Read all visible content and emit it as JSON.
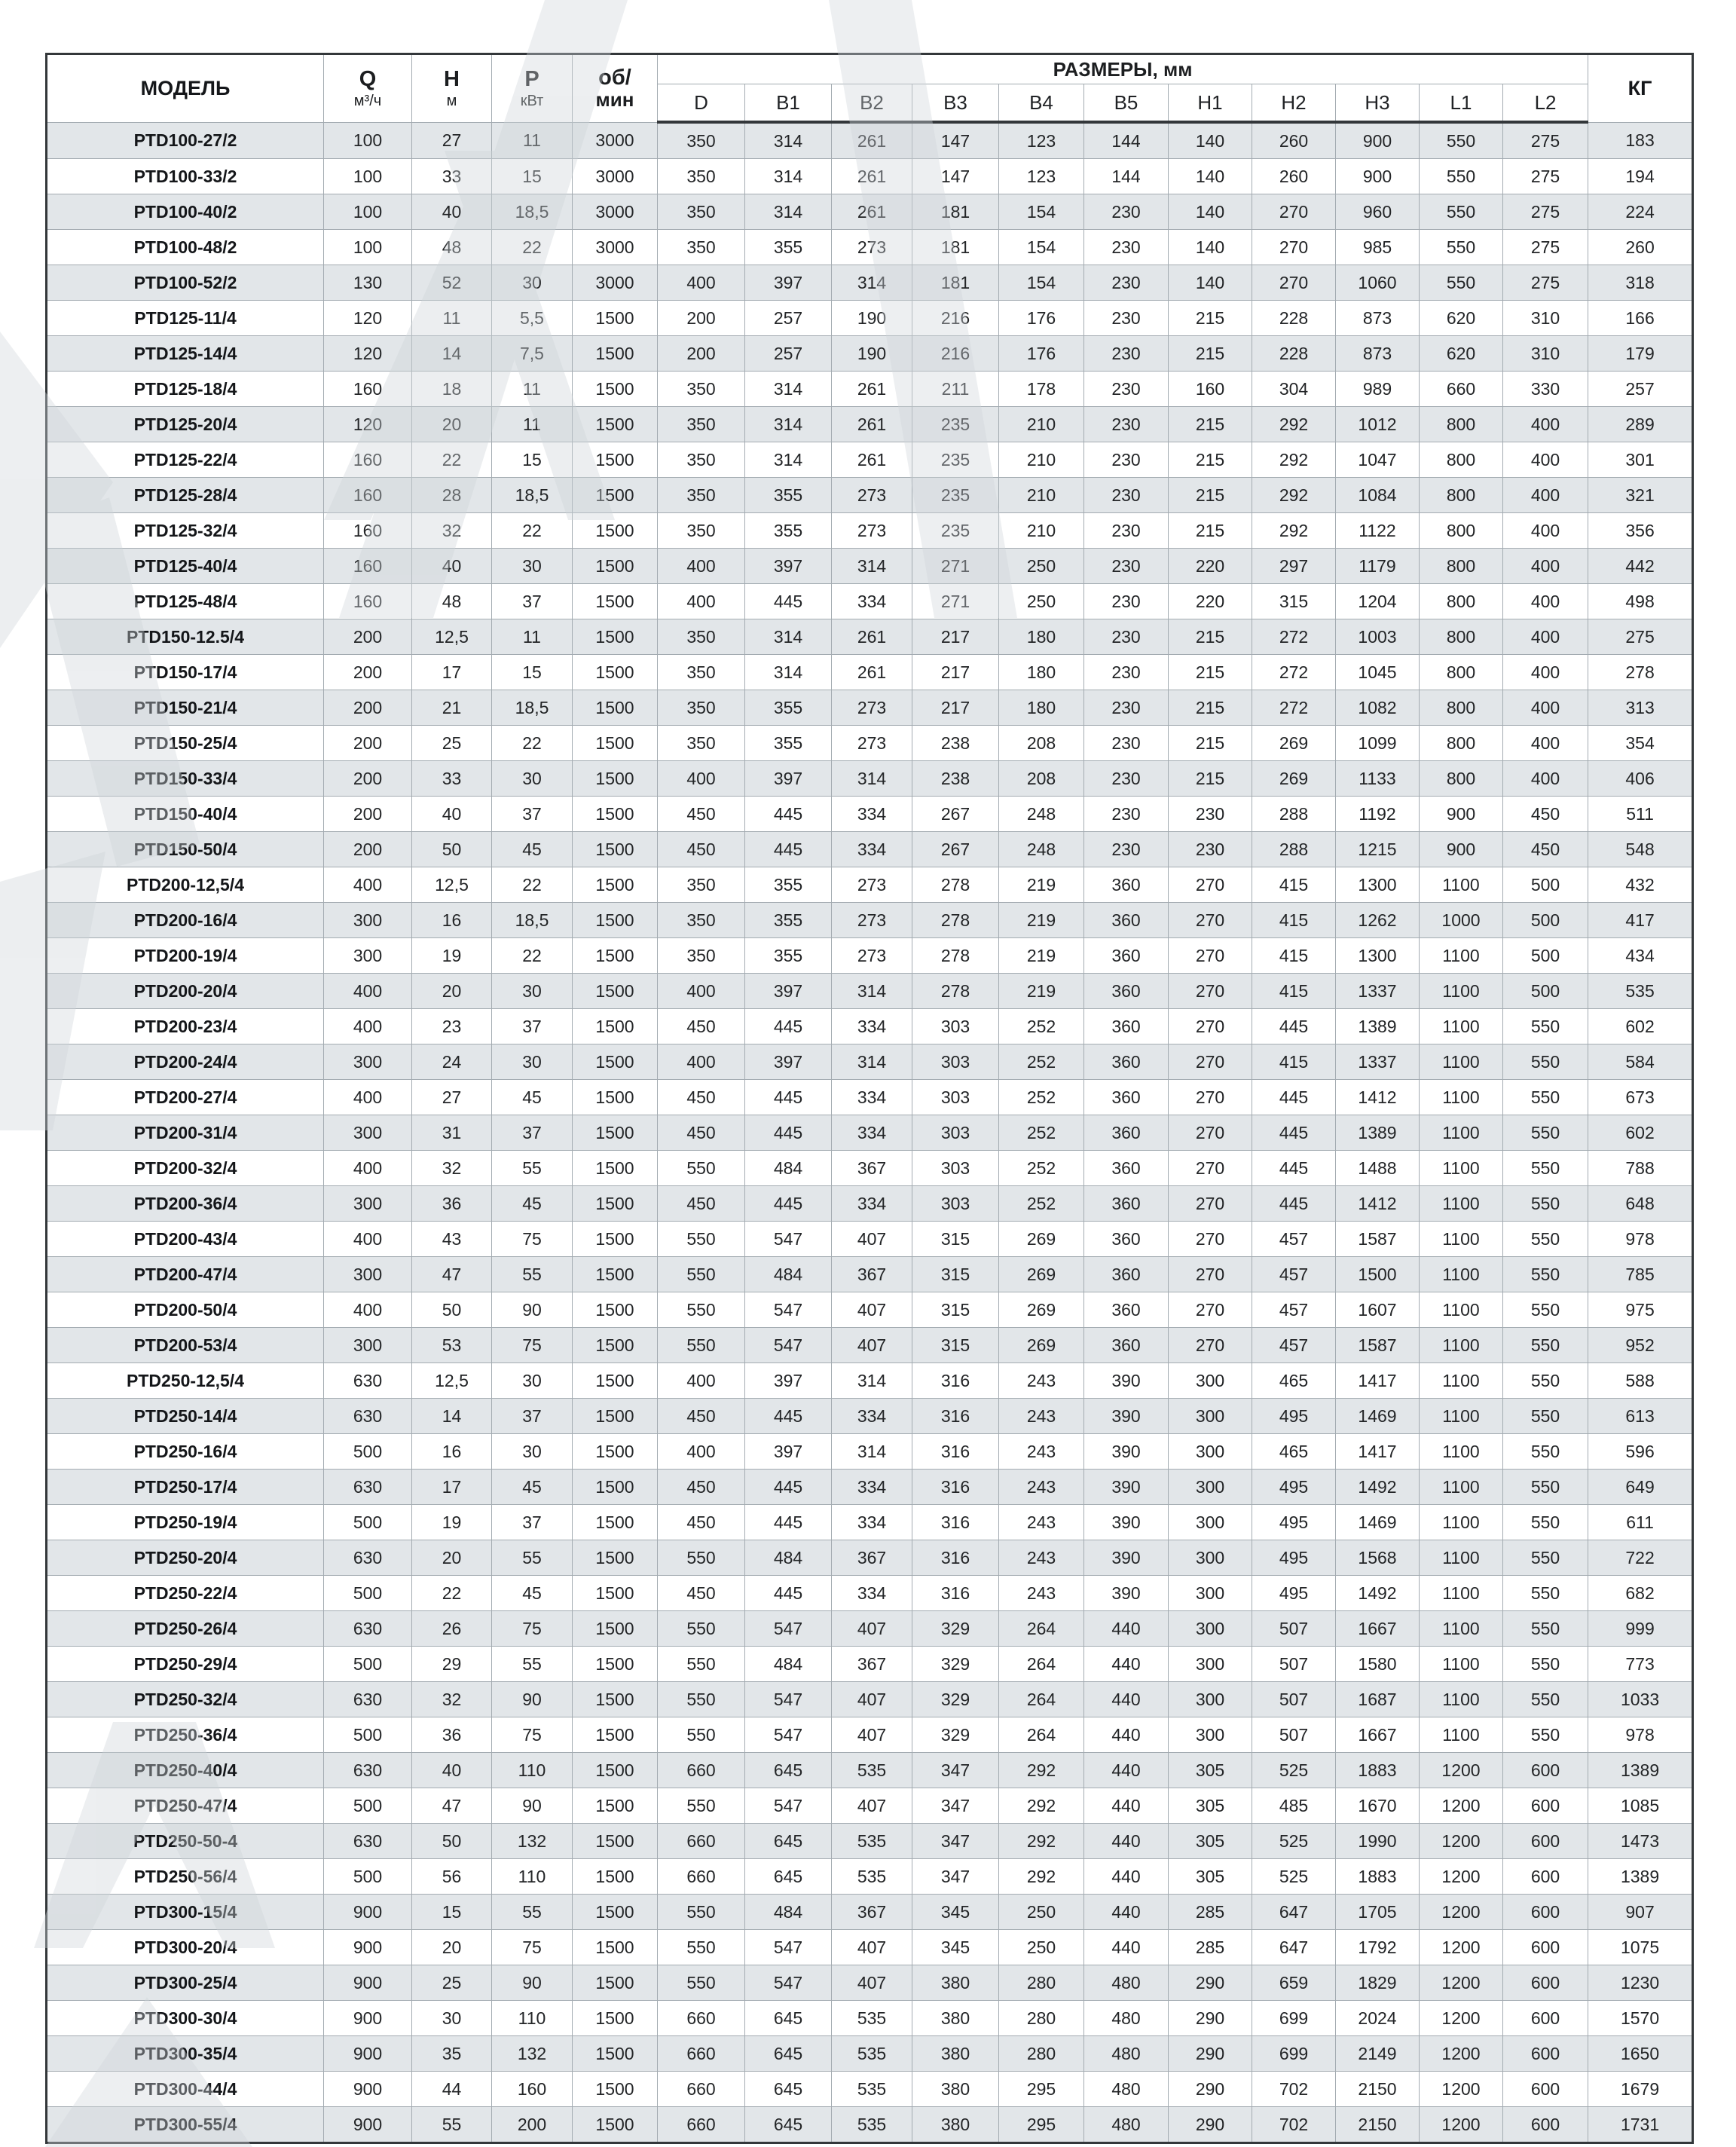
{
  "header": {
    "model": "МОДЕЛЬ",
    "q_label": "Q",
    "q_unit": "м³/ч",
    "h_label": "Н",
    "h_unit": "м",
    "p_label": "Р",
    "p_unit": "кВт",
    "rpm_line1": "об/",
    "rpm_line2": "мин",
    "dims_label": "РАЗМЕРЫ, мм",
    "dim_cols": [
      "D",
      "B1",
      "B2",
      "B3",
      "B4",
      "B5",
      "H1",
      "H2",
      "H3",
      "L1",
      "L2"
    ],
    "kg": "КГ"
  },
  "colors": {
    "row_stripe": "#e2e6e9",
    "grid_line": "#a3abb1",
    "frame": "#33373a",
    "watermark": "#cfd5d9"
  },
  "rows": [
    [
      "PTD100-27/2",
      "100",
      "27",
      "11",
      "3000",
      "350",
      "314",
      "261",
      "147",
      "123",
      "144",
      "140",
      "260",
      "900",
      "550",
      "275",
      "183"
    ],
    [
      "PTD100-33/2",
      "100",
      "33",
      "15",
      "3000",
      "350",
      "314",
      "261",
      "147",
      "123",
      "144",
      "140",
      "260",
      "900",
      "550",
      "275",
      "194"
    ],
    [
      "PTD100-40/2",
      "100",
      "40",
      "18,5",
      "3000",
      "350",
      "314",
      "261",
      "181",
      "154",
      "230",
      "140",
      "270",
      "960",
      "550",
      "275",
      "224"
    ],
    [
      "PTD100-48/2",
      "100",
      "48",
      "22",
      "3000",
      "350",
      "355",
      "273",
      "181",
      "154",
      "230",
      "140",
      "270",
      "985",
      "550",
      "275",
      "260"
    ],
    [
      "PTD100-52/2",
      "130",
      "52",
      "30",
      "3000",
      "400",
      "397",
      "314",
      "181",
      "154",
      "230",
      "140",
      "270",
      "1060",
      "550",
      "275",
      "318"
    ],
    [
      "PTD125-11/4",
      "120",
      "11",
      "5,5",
      "1500",
      "200",
      "257",
      "190",
      "216",
      "176",
      "230",
      "215",
      "228",
      "873",
      "620",
      "310",
      "166"
    ],
    [
      "PTD125-14/4",
      "120",
      "14",
      "7,5",
      "1500",
      "200",
      "257",
      "190",
      "216",
      "176",
      "230",
      "215",
      "228",
      "873",
      "620",
      "310",
      "179"
    ],
    [
      "PTD125-18/4",
      "160",
      "18",
      "11",
      "1500",
      "350",
      "314",
      "261",
      "211",
      "178",
      "230",
      "160",
      "304",
      "989",
      "660",
      "330",
      "257"
    ],
    [
      "PTD125-20/4",
      "120",
      "20",
      "11",
      "1500",
      "350",
      "314",
      "261",
      "235",
      "210",
      "230",
      "215",
      "292",
      "1012",
      "800",
      "400",
      "289"
    ],
    [
      "PTD125-22/4",
      "160",
      "22",
      "15",
      "1500",
      "350",
      "314",
      "261",
      "235",
      "210",
      "230",
      "215",
      "292",
      "1047",
      "800",
      "400",
      "301"
    ],
    [
      "PTD125-28/4",
      "160",
      "28",
      "18,5",
      "1500",
      "350",
      "355",
      "273",
      "235",
      "210",
      "230",
      "215",
      "292",
      "1084",
      "800",
      "400",
      "321"
    ],
    [
      "PTD125-32/4",
      "160",
      "32",
      "22",
      "1500",
      "350",
      "355",
      "273",
      "235",
      "210",
      "230",
      "215",
      "292",
      "1122",
      "800",
      "400",
      "356"
    ],
    [
      "PTD125-40/4",
      "160",
      "40",
      "30",
      "1500",
      "400",
      "397",
      "314",
      "271",
      "250",
      "230",
      "220",
      "297",
      "1179",
      "800",
      "400",
      "442"
    ],
    [
      "PTD125-48/4",
      "160",
      "48",
      "37",
      "1500",
      "400",
      "445",
      "334",
      "271",
      "250",
      "230",
      "220",
      "315",
      "1204",
      "800",
      "400",
      "498"
    ],
    [
      "PTD150-12.5/4",
      "200",
      "12,5",
      "11",
      "1500",
      "350",
      "314",
      "261",
      "217",
      "180",
      "230",
      "215",
      "272",
      "1003",
      "800",
      "400",
      "275"
    ],
    [
      "PTD150-17/4",
      "200",
      "17",
      "15",
      "1500",
      "350",
      "314",
      "261",
      "217",
      "180",
      "230",
      "215",
      "272",
      "1045",
      "800",
      "400",
      "278"
    ],
    [
      "PTD150-21/4",
      "200",
      "21",
      "18,5",
      "1500",
      "350",
      "355",
      "273",
      "217",
      "180",
      "230",
      "215",
      "272",
      "1082",
      "800",
      "400",
      "313"
    ],
    [
      "PTD150-25/4",
      "200",
      "25",
      "22",
      "1500",
      "350",
      "355",
      "273",
      "238",
      "208",
      "230",
      "215",
      "269",
      "1099",
      "800",
      "400",
      "354"
    ],
    [
      "PTD150-33/4",
      "200",
      "33",
      "30",
      "1500",
      "400",
      "397",
      "314",
      "238",
      "208",
      "230",
      "215",
      "269",
      "1133",
      "800",
      "400",
      "406"
    ],
    [
      "PTD150-40/4",
      "200",
      "40",
      "37",
      "1500",
      "450",
      "445",
      "334",
      "267",
      "248",
      "230",
      "230",
      "288",
      "1192",
      "900",
      "450",
      "511"
    ],
    [
      "PTD150-50/4",
      "200",
      "50",
      "45",
      "1500",
      "450",
      "445",
      "334",
      "267",
      "248",
      "230",
      "230",
      "288",
      "1215",
      "900",
      "450",
      "548"
    ],
    [
      "PTD200-12,5/4",
      "400",
      "12,5",
      "22",
      "1500",
      "350",
      "355",
      "273",
      "278",
      "219",
      "360",
      "270",
      "415",
      "1300",
      "1100",
      "500",
      "432"
    ],
    [
      "PTD200-16/4",
      "300",
      "16",
      "18,5",
      "1500",
      "350",
      "355",
      "273",
      "278",
      "219",
      "360",
      "270",
      "415",
      "1262",
      "1000",
      "500",
      "417"
    ],
    [
      "PTD200-19/4",
      "300",
      "19",
      "22",
      "1500",
      "350",
      "355",
      "273",
      "278",
      "219",
      "360",
      "270",
      "415",
      "1300",
      "1100",
      "500",
      "434"
    ],
    [
      "PTD200-20/4",
      "400",
      "20",
      "30",
      "1500",
      "400",
      "397",
      "314",
      "278",
      "219",
      "360",
      "270",
      "415",
      "1337",
      "1100",
      "500",
      "535"
    ],
    [
      "PTD200-23/4",
      "400",
      "23",
      "37",
      "1500",
      "450",
      "445",
      "334",
      "303",
      "252",
      "360",
      "270",
      "445",
      "1389",
      "1100",
      "550",
      "602"
    ],
    [
      "PTD200-24/4",
      "300",
      "24",
      "30",
      "1500",
      "400",
      "397",
      "314",
      "303",
      "252",
      "360",
      "270",
      "415",
      "1337",
      "1100",
      "550",
      "584"
    ],
    [
      "PTD200-27/4",
      "400",
      "27",
      "45",
      "1500",
      "450",
      "445",
      "334",
      "303",
      "252",
      "360",
      "270",
      "445",
      "1412",
      "1100",
      "550",
      "673"
    ],
    [
      "PTD200-31/4",
      "300",
      "31",
      "37",
      "1500",
      "450",
      "445",
      "334",
      "303",
      "252",
      "360",
      "270",
      "445",
      "1389",
      "1100",
      "550",
      "602"
    ],
    [
      "PTD200-32/4",
      "400",
      "32",
      "55",
      "1500",
      "550",
      "484",
      "367",
      "303",
      "252",
      "360",
      "270",
      "445",
      "1488",
      "1100",
      "550",
      "788"
    ],
    [
      "PTD200-36/4",
      "300",
      "36",
      "45",
      "1500",
      "450",
      "445",
      "334",
      "303",
      "252",
      "360",
      "270",
      "445",
      "1412",
      "1100",
      "550",
      "648"
    ],
    [
      "PTD200-43/4",
      "400",
      "43",
      "75",
      "1500",
      "550",
      "547",
      "407",
      "315",
      "269",
      "360",
      "270",
      "457",
      "1587",
      "1100",
      "550",
      "978"
    ],
    [
      "PTD200-47/4",
      "300",
      "47",
      "55",
      "1500",
      "550",
      "484",
      "367",
      "315",
      "269",
      "360",
      "270",
      "457",
      "1500",
      "1100",
      "550",
      "785"
    ],
    [
      "PTD200-50/4",
      "400",
      "50",
      "90",
      "1500",
      "550",
      "547",
      "407",
      "315",
      "269",
      "360",
      "270",
      "457",
      "1607",
      "1100",
      "550",
      "975"
    ],
    [
      "PTD200-53/4",
      "300",
      "53",
      "75",
      "1500",
      "550",
      "547",
      "407",
      "315",
      "269",
      "360",
      "270",
      "457",
      "1587",
      "1100",
      "550",
      "952"
    ],
    [
      "PTD250-12,5/4",
      "630",
      "12,5",
      "30",
      "1500",
      "400",
      "397",
      "314",
      "316",
      "243",
      "390",
      "300",
      "465",
      "1417",
      "1100",
      "550",
      "588"
    ],
    [
      "PTD250-14/4",
      "630",
      "14",
      "37",
      "1500",
      "450",
      "445",
      "334",
      "316",
      "243",
      "390",
      "300",
      "495",
      "1469",
      "1100",
      "550",
      "613"
    ],
    [
      "PTD250-16/4",
      "500",
      "16",
      "30",
      "1500",
      "400",
      "397",
      "314",
      "316",
      "243",
      "390",
      "300",
      "465",
      "1417",
      "1100",
      "550",
      "596"
    ],
    [
      "PTD250-17/4",
      "630",
      "17",
      "45",
      "1500",
      "450",
      "445",
      "334",
      "316",
      "243",
      "390",
      "300",
      "495",
      "1492",
      "1100",
      "550",
      "649"
    ],
    [
      "PTD250-19/4",
      "500",
      "19",
      "37",
      "1500",
      "450",
      "445",
      "334",
      "316",
      "243",
      "390",
      "300",
      "495",
      "1469",
      "1100",
      "550",
      "611"
    ],
    [
      "PTD250-20/4",
      "630",
      "20",
      "55",
      "1500",
      "550",
      "484",
      "367",
      "316",
      "243",
      "390",
      "300",
      "495",
      "1568",
      "1100",
      "550",
      "722"
    ],
    [
      "PTD250-22/4",
      "500",
      "22",
      "45",
      "1500",
      "450",
      "445",
      "334",
      "316",
      "243",
      "390",
      "300",
      "495",
      "1492",
      "1100",
      "550",
      "682"
    ],
    [
      "PTD250-26/4",
      "630",
      "26",
      "75",
      "1500",
      "550",
      "547",
      "407",
      "329",
      "264",
      "440",
      "300",
      "507",
      "1667",
      "1100",
      "550",
      "999"
    ],
    [
      "PTD250-29/4",
      "500",
      "29",
      "55",
      "1500",
      "550",
      "484",
      "367",
      "329",
      "264",
      "440",
      "300",
      "507",
      "1580",
      "1100",
      "550",
      "773"
    ],
    [
      "PTD250-32/4",
      "630",
      "32",
      "90",
      "1500",
      "550",
      "547",
      "407",
      "329",
      "264",
      "440",
      "300",
      "507",
      "1687",
      "1100",
      "550",
      "1033"
    ],
    [
      "PTD250-36/4",
      "500",
      "36",
      "75",
      "1500",
      "550",
      "547",
      "407",
      "329",
      "264",
      "440",
      "300",
      "507",
      "1667",
      "1100",
      "550",
      "978"
    ],
    [
      "PTD250-40/4",
      "630",
      "40",
      "110",
      "1500",
      "660",
      "645",
      "535",
      "347",
      "292",
      "440",
      "305",
      "525",
      "1883",
      "1200",
      "600",
      "1389"
    ],
    [
      "PTD250-47/4",
      "500",
      "47",
      "90",
      "1500",
      "550",
      "547",
      "407",
      "347",
      "292",
      "440",
      "305",
      "485",
      "1670",
      "1200",
      "600",
      "1085"
    ],
    [
      "PTD250-50-4",
      "630",
      "50",
      "132",
      "1500",
      "660",
      "645",
      "535",
      "347",
      "292",
      "440",
      "305",
      "525",
      "1990",
      "1200",
      "600",
      "1473"
    ],
    [
      "PTD250-56/4",
      "500",
      "56",
      "110",
      "1500",
      "660",
      "645",
      "535",
      "347",
      "292",
      "440",
      "305",
      "525",
      "1883",
      "1200",
      "600",
      "1389"
    ],
    [
      "PTD300-15/4",
      "900",
      "15",
      "55",
      "1500",
      "550",
      "484",
      "367",
      "345",
      "250",
      "440",
      "285",
      "647",
      "1705",
      "1200",
      "600",
      "907"
    ],
    [
      "PTD300-20/4",
      "900",
      "20",
      "75",
      "1500",
      "550",
      "547",
      "407",
      "345",
      "250",
      "440",
      "285",
      "647",
      "1792",
      "1200",
      "600",
      "1075"
    ],
    [
      "PTD300-25/4",
      "900",
      "25",
      "90",
      "1500",
      "550",
      "547",
      "407",
      "380",
      "280",
      "480",
      "290",
      "659",
      "1829",
      "1200",
      "600",
      "1230"
    ],
    [
      "PTD300-30/4",
      "900",
      "30",
      "110",
      "1500",
      "660",
      "645",
      "535",
      "380",
      "280",
      "480",
      "290",
      "699",
      "2024",
      "1200",
      "600",
      "1570"
    ],
    [
      "PTD300-35/4",
      "900",
      "35",
      "132",
      "1500",
      "660",
      "645",
      "535",
      "380",
      "280",
      "480",
      "290",
      "699",
      "2149",
      "1200",
      "600",
      "1650"
    ],
    [
      "PTD300-44/4",
      "900",
      "44",
      "160",
      "1500",
      "660",
      "645",
      "535",
      "380",
      "295",
      "480",
      "290",
      "702",
      "2150",
      "1200",
      "600",
      "1679"
    ],
    [
      "PTD300-55/4",
      "900",
      "55",
      "200",
      "1500",
      "660",
      "645",
      "535",
      "380",
      "295",
      "480",
      "290",
      "702",
      "2150",
      "1200",
      "600",
      "1731"
    ]
  ]
}
